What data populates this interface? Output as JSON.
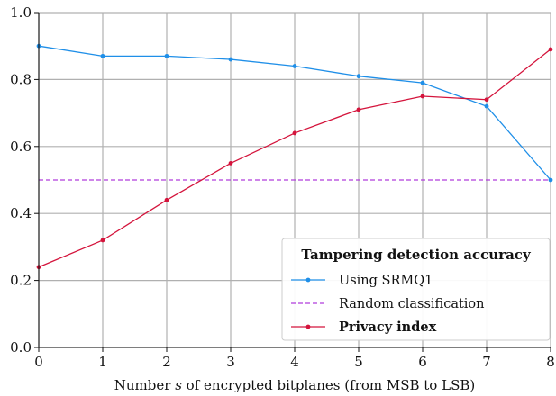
{
  "chart_data": {
    "type": "line",
    "xlabel_parts": [
      "Number ",
      "s",
      " of encrypted bitplanes (from MSB to LSB)"
    ],
    "ylabel": "",
    "x": [
      0,
      1,
      2,
      3,
      4,
      5,
      6,
      7,
      8
    ],
    "xlim": [
      0,
      8
    ],
    "ylim": [
      0.0,
      1.0
    ],
    "xticks": [
      "0",
      "1",
      "2",
      "3",
      "4",
      "5",
      "6",
      "7",
      "8"
    ],
    "yticks": [
      "0.0",
      "0.2",
      "0.4",
      "0.6",
      "0.8",
      "1.0"
    ],
    "grid": true,
    "legend": {
      "position": "bottom-right",
      "title": "Tampering detection accuracy"
    },
    "series": [
      {
        "name": "Using SRMQ1",
        "color": "#1f8fe8",
        "style": "solid-marker",
        "values": [
          0.9,
          0.87,
          0.87,
          0.86,
          0.84,
          0.81,
          0.79,
          0.72,
          0.5
        ]
      },
      {
        "name": "Random classification",
        "color": "#b03cdc",
        "style": "dashed",
        "values": [
          0.5,
          0.5,
          0.5,
          0.5,
          0.5,
          0.5,
          0.5,
          0.5,
          0.5
        ]
      },
      {
        "name": "Privacy index",
        "color": "#d4143c",
        "style": "solid-marker",
        "bold_label": true,
        "values": [
          0.24,
          0.32,
          0.44,
          0.55,
          0.64,
          0.71,
          0.75,
          0.74,
          0.89
        ]
      }
    ]
  }
}
